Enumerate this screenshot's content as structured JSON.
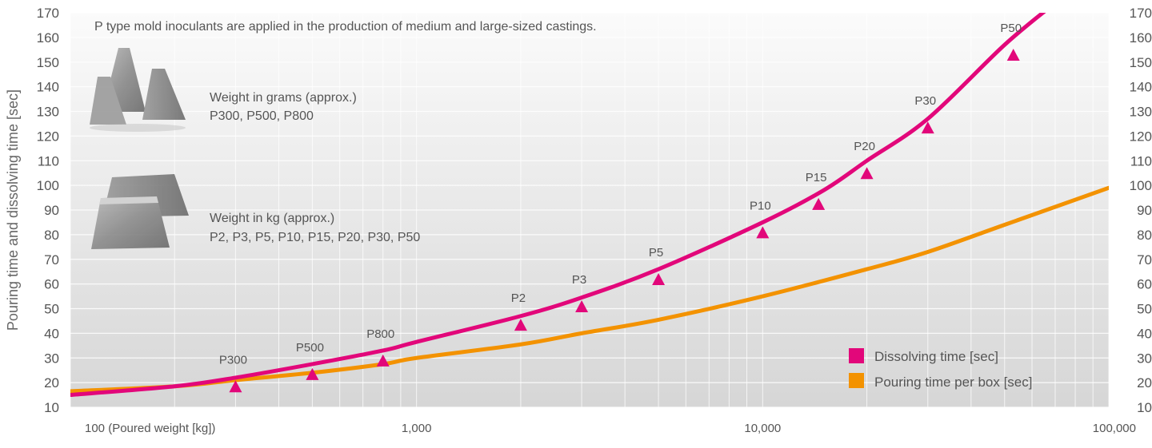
{
  "chart_data": {
    "type": "line",
    "title": "",
    "annotation": "P type mold inoculants are applied in the production of medium and large-sized castings.",
    "xlabel": "Poured weight [kg]",
    "ylabel": "Pouring time and dissolving time [sec]",
    "xscale": "log",
    "xlim": [
      100,
      100000
    ],
    "ylim": [
      10,
      170
    ],
    "grid": true,
    "x_ticks": [
      {
        "value": 100,
        "label": "100 (Poured weight [kg])"
      },
      {
        "value": 1000,
        "label": "1,000"
      },
      {
        "value": 10000,
        "label": "10,000"
      },
      {
        "value": 100000,
        "label": "100,000"
      }
    ],
    "y_ticks": [
      10,
      20,
      30,
      40,
      50,
      60,
      70,
      80,
      90,
      100,
      110,
      120,
      130,
      140,
      150,
      160,
      170
    ],
    "y_ticks_right": [
      10,
      20,
      30,
      40,
      50,
      60,
      70,
      80,
      90,
      100,
      110,
      120,
      130,
      140,
      150,
      160,
      170
    ],
    "legend_position": "bottom-right",
    "series": [
      {
        "name": "Dissolving time [sec]",
        "color": "#e2077a",
        "kind": "curve",
        "x": [
          100,
          200,
          300,
          500,
          800,
          1000,
          2000,
          3000,
          5000,
          10000,
          15000,
          20000,
          30000,
          50000,
          70000
        ],
        "y": [
          15,
          18.5,
          22,
          27.5,
          33,
          36.5,
          47,
          54.5,
          66,
          85,
          98,
          110,
          127,
          157,
          174
        ]
      },
      {
        "name": "Pouring time per box [sec]",
        "color": "#f39200",
        "kind": "curve",
        "x": [
          100,
          200,
          300,
          500,
          800,
          1000,
          2000,
          3000,
          5000,
          10000,
          20000,
          30000,
          50000,
          100000
        ],
        "y": [
          16.5,
          18.5,
          21,
          24,
          27.5,
          30,
          35.5,
          40,
          45.5,
          55,
          66,
          73,
          84,
          99
        ]
      }
    ],
    "markers": {
      "color": "#e2077a",
      "shape": "triangle",
      "points": [
        {
          "label": "P300",
          "x": 300,
          "y": 18
        },
        {
          "label": "P500",
          "x": 500,
          "y": 23
        },
        {
          "label": "P800",
          "x": 800,
          "y": 28.5
        },
        {
          "label": "P2",
          "x": 2000,
          "y": 43
        },
        {
          "label": "P3",
          "x": 3000,
          "y": 50.5
        },
        {
          "label": "P5",
          "x": 5000,
          "y": 61.5
        },
        {
          "label": "P10",
          "x": 10000,
          "y": 80.5
        },
        {
          "label": "P15",
          "x": 14500,
          "y": 92
        },
        {
          "label": "P20",
          "x": 20000,
          "y": 104.5
        },
        {
          "label": "P30",
          "x": 30000,
          "y": 123
        },
        {
          "label": "P50",
          "x": 53000,
          "y": 152.5
        }
      ]
    },
    "product_notes": [
      {
        "icon": "small-inoculant-cones-image",
        "title": "Weight in grams (approx.)",
        "items": "P300, P500, P800"
      },
      {
        "icon": "large-inoculant-blocks-image",
        "title": "Weight in kg (approx.)",
        "items": "P2, P3, P5, P10, P15, P20, P30, P50"
      }
    ]
  }
}
